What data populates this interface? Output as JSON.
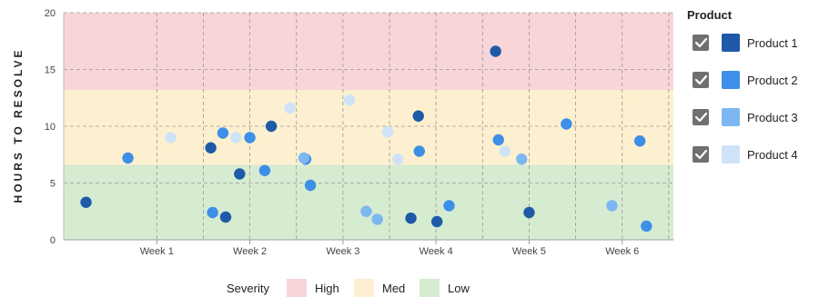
{
  "chart_data": {
    "type": "scatter",
    "ylabel": "HOURS TO RESOLVE",
    "ylim": [
      0,
      20
    ],
    "yticks": [
      0,
      5,
      10,
      15,
      20
    ],
    "xlim": [
      0.12,
      6.26
    ],
    "xticks": [
      {
        "label": "Week 1",
        "value": 1
      },
      {
        "label": "Week 2",
        "value": 2
      },
      {
        "label": "Week 3",
        "value": 3
      },
      {
        "label": "Week 4",
        "value": 4
      },
      {
        "label": "Week 5",
        "value": 5
      },
      {
        "label": "Week 6",
        "value": 6
      }
    ],
    "grid": true,
    "bands": [
      {
        "name": "High",
        "from": 13.2,
        "to": 20,
        "color": "#f8d5d8"
      },
      {
        "name": "Med",
        "from": 6.6,
        "to": 13.2,
        "color": "#fdf0d0"
      },
      {
        "name": "Low",
        "from": 0,
        "to": 6.6,
        "color": "#d5ecd1"
      }
    ],
    "series": [
      {
        "name": "Product 1",
        "color": "#1f5aa9",
        "points": [
          [
            0.24,
            3.3
          ],
          [
            1.58,
            8.1
          ],
          [
            1.74,
            2.0
          ],
          [
            1.89,
            5.8
          ],
          [
            2.23,
            10.0
          ],
          [
            3.73,
            1.9
          ],
          [
            3.81,
            10.9
          ],
          [
            4.01,
            1.6
          ],
          [
            4.64,
            16.6
          ],
          [
            5.0,
            2.4
          ]
        ]
      },
      {
        "name": "Product 2",
        "color": "#3d8fe8",
        "points": [
          [
            0.69,
            7.2
          ],
          [
            1.6,
            2.4
          ],
          [
            1.71,
            9.4
          ],
          [
            2.0,
            9.0
          ],
          [
            2.16,
            6.1
          ],
          [
            2.6,
            7.1
          ],
          [
            2.65,
            4.8
          ],
          [
            3.82,
            7.8
          ],
          [
            4.14,
            3.0
          ],
          [
            4.67,
            8.8
          ],
          [
            5.4,
            10.2
          ],
          [
            6.19,
            8.7
          ],
          [
            6.26,
            1.2
          ]
        ]
      },
      {
        "name": "Product 3",
        "color": "#7db7f2",
        "points": [
          [
            2.58,
            7.2
          ],
          [
            3.25,
            2.5
          ],
          [
            3.37,
            1.8
          ],
          [
            4.92,
            7.1
          ],
          [
            5.89,
            3.0
          ]
        ]
      },
      {
        "name": "Product 4",
        "color": "#cfe3f8",
        "points": [
          [
            1.15,
            9.0
          ],
          [
            1.85,
            9.0
          ],
          [
            2.43,
            11.6
          ],
          [
            3.07,
            12.3
          ],
          [
            3.48,
            9.5
          ],
          [
            3.59,
            7.1
          ],
          [
            4.74,
            7.8
          ]
        ]
      }
    ],
    "legend": {
      "title": "Product",
      "position": "right"
    },
    "severity_legend": {
      "title": "Severity",
      "position": "bottom"
    }
  },
  "legend_checkbox_color": "#707070",
  "check_icon": "checkmark-icon"
}
